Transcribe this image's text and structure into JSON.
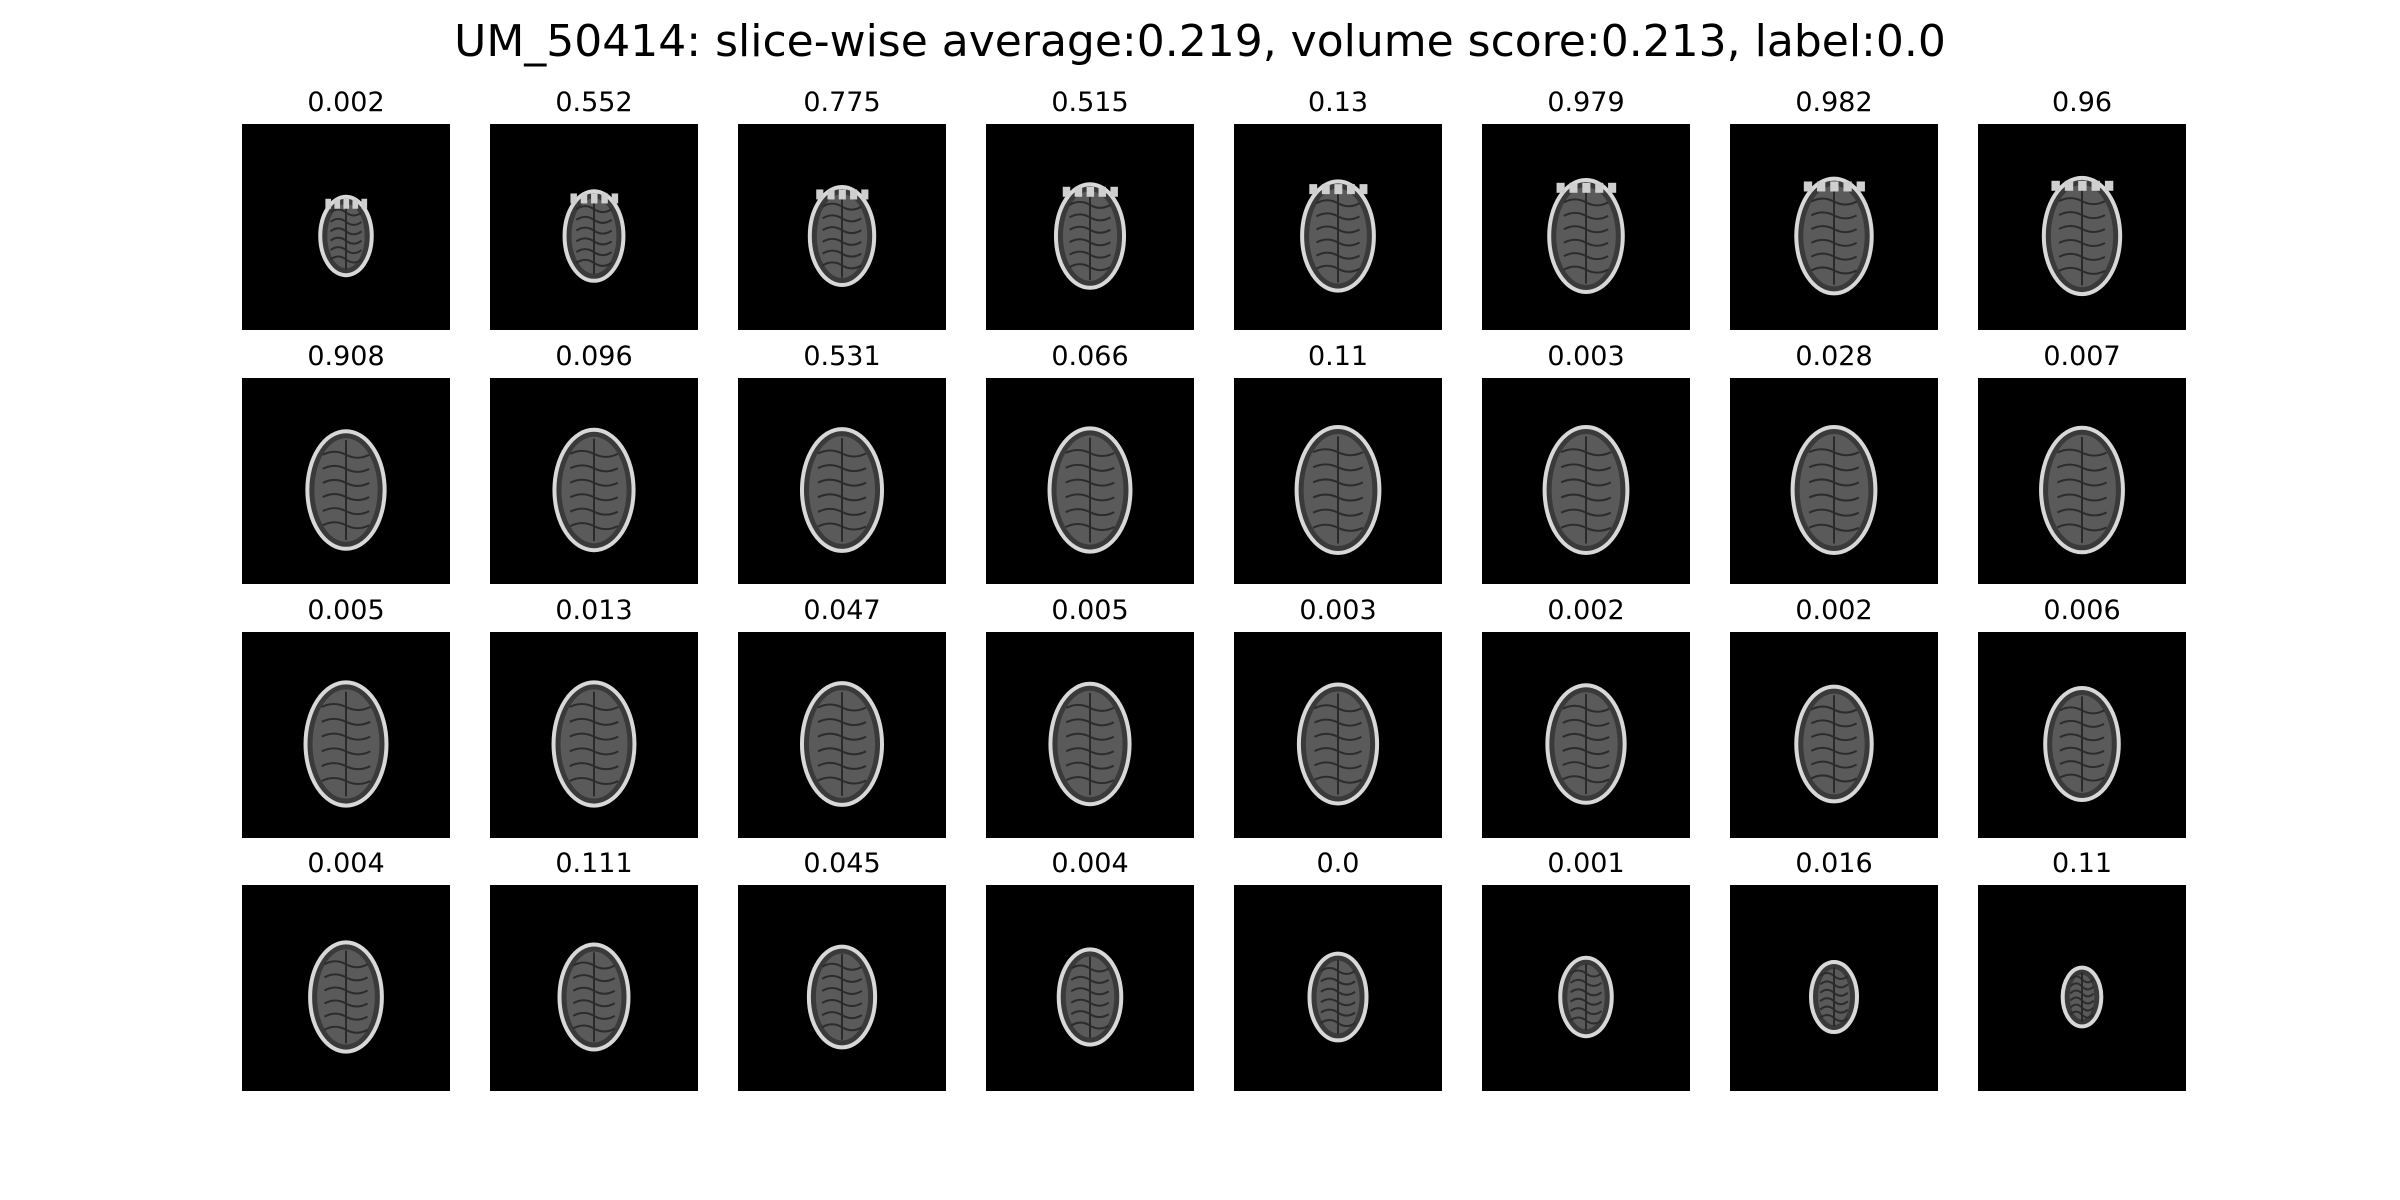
{
  "figure": {
    "title": "UM_50414: slice-wise average:0.219, volume score:0.213, label:0.0"
  },
  "slices": [
    {
      "score": "0.002",
      "size": 0.56
    },
    {
      "score": "0.552",
      "size": 0.64
    },
    {
      "score": "0.775",
      "size": 0.7
    },
    {
      "score": "0.515",
      "size": 0.74
    },
    {
      "score": "0.13",
      "size": 0.78
    },
    {
      "score": "0.979",
      "size": 0.8
    },
    {
      "score": "0.982",
      "size": 0.82
    },
    {
      "score": "0.96",
      "size": 0.83
    },
    {
      "score": "0.908",
      "size": 0.84
    },
    {
      "score": "0.096",
      "size": 0.86
    },
    {
      "score": "0.531",
      "size": 0.87
    },
    {
      "score": "0.066",
      "size": 0.88
    },
    {
      "score": "0.11",
      "size": 0.9
    },
    {
      "score": "0.003",
      "size": 0.9
    },
    {
      "score": "0.028",
      "size": 0.9
    },
    {
      "score": "0.007",
      "size": 0.89
    },
    {
      "score": "0.005",
      "size": 0.88
    },
    {
      "score": "0.013",
      "size": 0.88
    },
    {
      "score": "0.047",
      "size": 0.87
    },
    {
      "score": "0.005",
      "size": 0.86
    },
    {
      "score": "0.003",
      "size": 0.85
    },
    {
      "score": "0.002",
      "size": 0.84
    },
    {
      "score": "0.002",
      "size": 0.82
    },
    {
      "score": "0.006",
      "size": 0.8
    },
    {
      "score": "0.004",
      "size": 0.78
    },
    {
      "score": "0.111",
      "size": 0.75
    },
    {
      "score": "0.045",
      "size": 0.72
    },
    {
      "score": "0.004",
      "size": 0.68
    },
    {
      "score": "0.0",
      "size": 0.62
    },
    {
      "score": "0.001",
      "size": 0.56
    },
    {
      "score": "0.016",
      "size": 0.5
    },
    {
      "score": "0.11",
      "size": 0.42
    }
  ]
}
